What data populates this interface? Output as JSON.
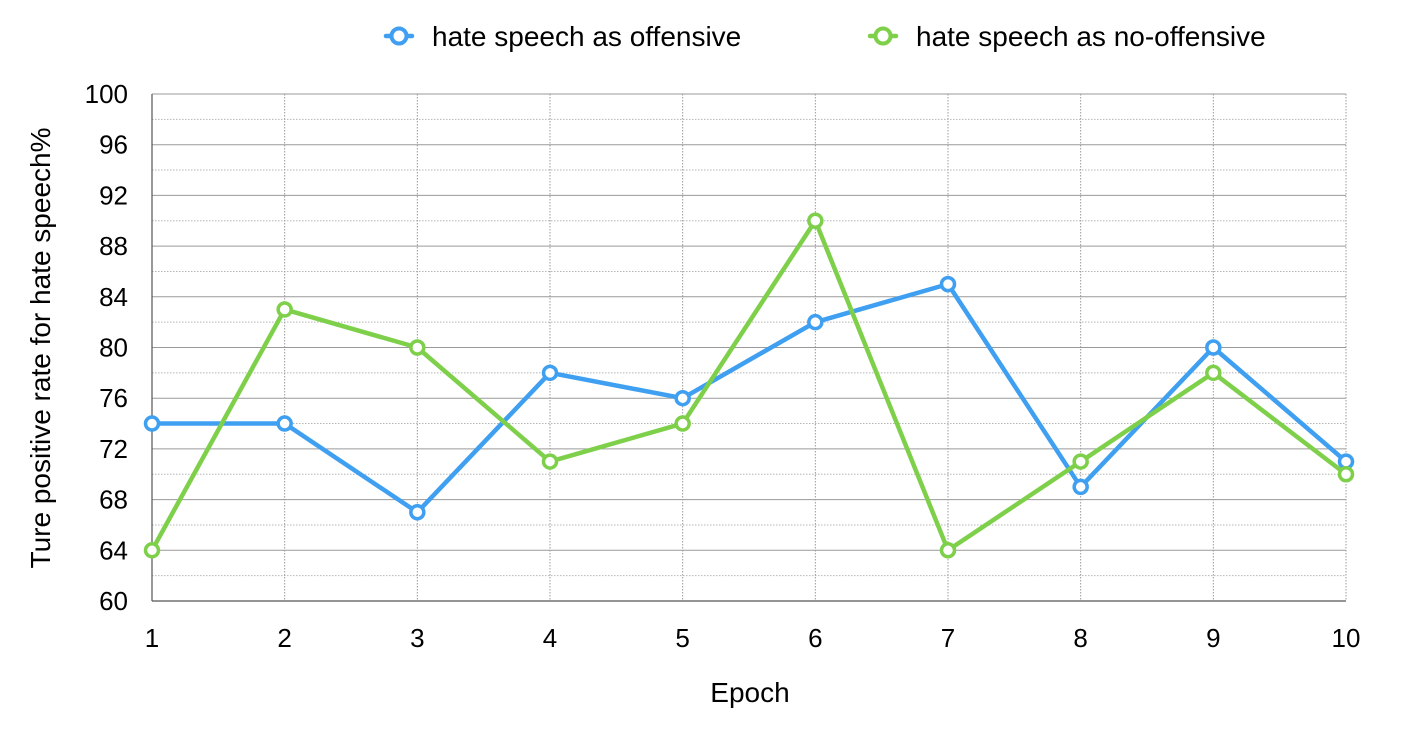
{
  "chart_data": {
    "type": "line",
    "title": "",
    "xlabel": "Epoch",
    "ylabel": "Ture positive rate for hate speech%",
    "x": [
      1,
      2,
      3,
      4,
      5,
      6,
      7,
      8,
      9,
      10
    ],
    "ylim": [
      60,
      100
    ],
    "yticks": [
      60,
      64,
      68,
      72,
      76,
      80,
      84,
      88,
      92,
      96,
      100
    ],
    "grid": true,
    "legend_position": "top",
    "series": [
      {
        "name": "hate speech as offensive",
        "color": "#3f9ff0",
        "values": [
          74,
          74,
          67,
          78,
          76,
          82,
          85,
          69,
          80,
          71
        ]
      },
      {
        "name": "hate speech as no-offensive",
        "color": "#7ed04a",
        "values": [
          64,
          83,
          80,
          71,
          74,
          90,
          64,
          71,
          78,
          70
        ]
      }
    ]
  }
}
